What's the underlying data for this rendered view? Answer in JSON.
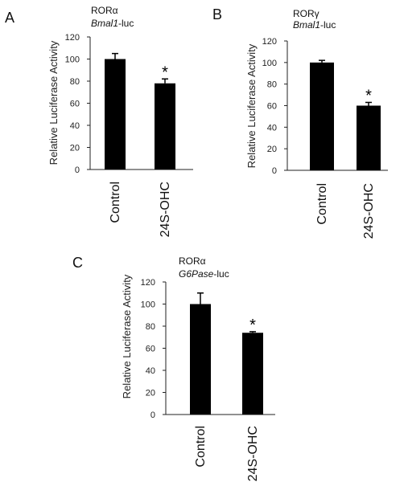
{
  "chart_data": [
    {
      "type": "bar",
      "panel": "A",
      "receptor": "RORα",
      "reporter_gene": "Bmal1",
      "reporter_suffix": "-luc",
      "ylabel": "Relative Luciferase Activity",
      "ylim": [
        0,
        120
      ],
      "yticks": [
        "0",
        "20",
        "40",
        "60",
        "80",
        "100",
        "120"
      ],
      "categories": [
        "Control",
        "24S-OHC"
      ],
      "values": [
        100,
        78
      ],
      "errors": [
        5,
        4
      ],
      "significance": [
        "",
        "*"
      ]
    },
    {
      "type": "bar",
      "panel": "B",
      "receptor": "RORγ",
      "reporter_gene": "Bmal1",
      "reporter_suffix": "-luc",
      "ylabel": "Relative Luciferase Activity",
      "ylim": [
        0,
        120
      ],
      "yticks": [
        "0",
        "20",
        "40",
        "60",
        "80",
        "100",
        "120"
      ],
      "categories": [
        "Control",
        "24S-OHC"
      ],
      "values": [
        100,
        60
      ],
      "errors": [
        2,
        3
      ],
      "significance": [
        "",
        "*"
      ]
    },
    {
      "type": "bar",
      "panel": "C",
      "receptor": "RORα",
      "reporter_gene": "G6Pase",
      "reporter_suffix": "-luc",
      "ylabel": "Relative Luciferase Activity",
      "ylim": [
        0,
        120
      ],
      "yticks": [
        "0",
        "20",
        "40",
        "60",
        "80",
        "100",
        "120"
      ],
      "categories": [
        "Control",
        "24S-OHC"
      ],
      "values": [
        100,
        74
      ],
      "errors": [
        10,
        1
      ],
      "significance": [
        "",
        "*"
      ]
    }
  ]
}
